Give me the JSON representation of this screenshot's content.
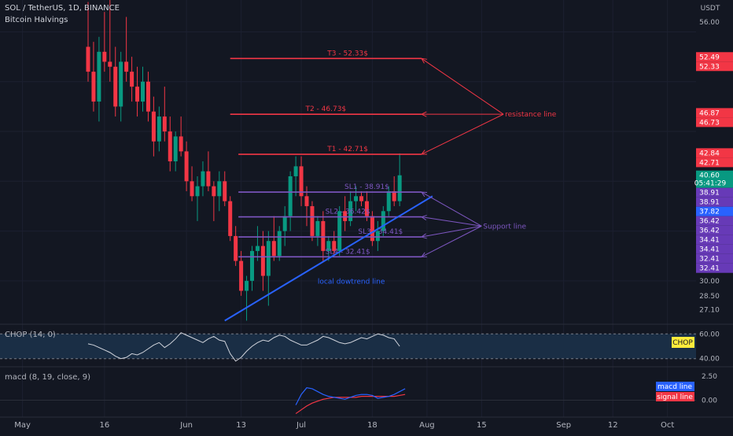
{
  "header": {
    "symbol": "SOL / TetherUS, 1D, BINANCE",
    "indicator": "Bitcoin Halvings",
    "currency": "USDT"
  },
  "chart_data": {
    "type": "candlestick",
    "ylim": [
      25.8,
      58.2
    ],
    "right_ticks": [
      "56.00",
      "30.00",
      "28.50",
      "27.10"
    ],
    "level_tags": [
      {
        "value": 52.49,
        "text": "52.49",
        "color": "#f23645"
      },
      {
        "value": 52.33,
        "text": "52.33",
        "color": "#f23645"
      },
      {
        "value": 46.87,
        "text": "46.87",
        "color": "#f23645"
      },
      {
        "value": 46.73,
        "text": "46.73",
        "color": "#f23645"
      },
      {
        "value": 42.84,
        "text": "42.84",
        "color": "#f23645"
      },
      {
        "value": 42.71,
        "text": "42.71",
        "color": "#f23645"
      },
      {
        "value": 40.6,
        "text": "40.60",
        "sub": "05:41:29",
        "color": "#089981"
      },
      {
        "value": 38.91,
        "text": "38.91",
        "color": "#673ab7"
      },
      {
        "value": 38.91,
        "text": "38.91",
        "color": "#673ab7"
      },
      {
        "value": 37.82,
        "text": "37.82",
        "color": "#2962ff"
      },
      {
        "value": 36.42,
        "text": "36.42",
        "color": "#673ab7"
      },
      {
        "value": 36.42,
        "text": "36.42",
        "color": "#673ab7"
      },
      {
        "value": 34.41,
        "text": "34.41",
        "color": "#673ab7"
      },
      {
        "value": 34.41,
        "text": "34.41",
        "color": "#673ab7"
      },
      {
        "value": 32.41,
        "text": "32.41",
        "color": "#673ab7"
      },
      {
        "value": 32.41,
        "text": "32.41",
        "color": "#673ab7"
      }
    ],
    "x_labels": [
      {
        "i": -12,
        "text": "May"
      },
      {
        "i": 3,
        "text": "16"
      },
      {
        "i": 18,
        "text": "Jun"
      },
      {
        "i": 28,
        "text": "13"
      },
      {
        "i": 39,
        "text": "Jul"
      },
      {
        "i": 52,
        "text": "18"
      },
      {
        "i": 62,
        "text": "Aug"
      },
      {
        "i": 72,
        "text": "15"
      },
      {
        "i": 87,
        "text": "Sep"
      },
      {
        "i": 96,
        "text": "12"
      },
      {
        "i": 106,
        "text": "Oct"
      }
    ],
    "candles": [
      [
        53.5,
        58.0,
        50.0,
        51.0
      ],
      [
        51.0,
        54.0,
        47.0,
        48.0
      ],
      [
        48.0,
        54.5,
        46.0,
        53.0
      ],
      [
        53.0,
        57.0,
        51.0,
        52.0
      ],
      [
        52.0,
        58.2,
        50.0,
        51.5
      ],
      [
        51.5,
        53.5,
        46.5,
        47.5
      ],
      [
        47.5,
        53.0,
        46.0,
        52.0
      ],
      [
        52.0,
        56.5,
        50.0,
        51.0
      ],
      [
        51.0,
        52.5,
        48.0,
        49.5
      ],
      [
        49.5,
        51.5,
        46.5,
        48.0
      ],
      [
        48.0,
        51.5,
        47.0,
        50.0
      ],
      [
        50.0,
        51.0,
        46.0,
        47.0
      ],
      [
        47.0,
        48.5,
        42.5,
        44.0
      ],
      [
        44.0,
        47.5,
        43.0,
        46.5
      ],
      [
        46.5,
        49.5,
        44.0,
        45.0
      ],
      [
        45.0,
        46.5,
        41.0,
        42.0
      ],
      [
        42.0,
        45.0,
        41.0,
        44.5
      ],
      [
        44.5,
        46.5,
        42.5,
        43.0
      ],
      [
        43.0,
        44.0,
        39.0,
        40.0
      ],
      [
        40.0,
        41.5,
        38.0,
        38.5
      ],
      [
        38.5,
        40.5,
        36.0,
        39.5
      ],
      [
        39.5,
        42.0,
        38.5,
        41.0
      ],
      [
        41.0,
        43.0,
        39.0,
        39.5
      ],
      [
        39.5,
        40.0,
        36.0,
        38.5
      ],
      [
        38.5,
        41.0,
        37.0,
        40.0
      ],
      [
        40.0,
        41.0,
        37.5,
        38.0
      ],
      [
        38.0,
        38.5,
        34.0,
        34.5
      ],
      [
        34.5,
        35.5,
        31.5,
        32.0
      ],
      [
        32.0,
        33.0,
        28.5,
        29.0
      ],
      [
        29.0,
        30.5,
        26.0,
        30.0
      ],
      [
        30.0,
        33.5,
        29.0,
        33.0
      ],
      [
        33.0,
        35.5,
        32.0,
        33.5
      ],
      [
        33.5,
        35.0,
        29.0,
        30.5
      ],
      [
        30.5,
        35.0,
        27.5,
        34.0
      ],
      [
        34.0,
        36.5,
        32.0,
        32.5
      ],
      [
        32.5,
        35.5,
        32.0,
        35.0
      ],
      [
        35.0,
        37.5,
        33.5,
        36.5
      ],
      [
        36.5,
        41.0,
        35.0,
        40.5
      ],
      [
        40.5,
        42.5,
        38.5,
        41.5
      ],
      [
        41.5,
        42.5,
        37.5,
        38.5
      ],
      [
        38.5,
        39.5,
        35.5,
        37.5
      ],
      [
        37.5,
        38.0,
        34.0,
        34.5
      ],
      [
        34.5,
        36.5,
        33.5,
        36.0
      ],
      [
        36.0,
        37.0,
        32.0,
        33.0
      ],
      [
        33.0,
        34.5,
        32.0,
        34.0
      ],
      [
        34.0,
        35.0,
        32.5,
        33.0
      ],
      [
        33.0,
        37.5,
        32.5,
        37.0
      ],
      [
        37.0,
        38.5,
        35.0,
        36.0
      ],
      [
        36.0,
        39.0,
        35.5,
        38.0
      ],
      [
        38.0,
        39.5,
        37.0,
        38.5
      ],
      [
        38.5,
        39.0,
        37.5,
        38.0
      ],
      [
        38.0,
        39.0,
        36.0,
        36.5
      ],
      [
        36.5,
        37.0,
        33.5,
        34.0
      ],
      [
        34.0,
        36.0,
        33.0,
        35.0
      ],
      [
        35.0,
        37.5,
        34.5,
        37.0
      ],
      [
        37.0,
        39.5,
        36.5,
        39.0
      ],
      [
        39.0,
        40.5,
        37.5,
        38.0
      ],
      [
        38.0,
        42.8,
        37.5,
        40.6
      ]
    ],
    "level_lines": [
      {
        "name": "T3 - 52.33$",
        "value": 52.33,
        "i0": 26,
        "i1": 61,
        "color": "#f23645",
        "label_i": 47.5
      },
      {
        "name": "T2 - 46.73$",
        "value": 46.73,
        "i0": 26,
        "i1": 61,
        "color": "#f23645",
        "label_i": 43.5
      },
      {
        "name": "T1 - 42.71$",
        "value": 42.71,
        "i0": 27.5,
        "i1": 61,
        "color": "#f23645",
        "label_i": 47.5
      },
      {
        "name": "SL1 - 38.91$",
        "value": 38.91,
        "i0": 27.5,
        "i1": 61,
        "color": "#7e57c2",
        "label_i": 51
      },
      {
        "name": "SL2 - 36.42$",
        "value": 36.42,
        "i0": 27.5,
        "i1": 61,
        "color": "#7e57c2",
        "label_i": 47.5
      },
      {
        "name": "SL3 - 34.41$",
        "value": 34.41,
        "i0": 27.5,
        "i1": 61,
        "color": "#7e57c2",
        "label_i": 53.5
      },
      {
        "name": "SL4 - 32.41$",
        "value": 32.41,
        "i0": 27.5,
        "i1": 61,
        "color": "#7e57c2",
        "label_i": 47.5
      }
    ],
    "trendline": {
      "name": "local dowtrend line",
      "i0": 25,
      "v0": 26.0,
      "i1": 63,
      "v1": 38.5,
      "color": "#2962ff",
      "label_i": 42
    },
    "callouts": [
      {
        "text": "resistance line",
        "i": 78,
        "v": 46.73,
        "color": "#f23645",
        "targets": [
          {
            "i": 61,
            "v": 52.33
          },
          {
            "i": 61,
            "v": 46.73
          },
          {
            "i": 61,
            "v": 42.71
          }
        ]
      },
      {
        "text": "Support line",
        "i": 74,
        "v": 35.5,
        "color": "#7e57c2",
        "targets": [
          {
            "i": 61,
            "v": 38.91
          },
          {
            "i": 61,
            "v": 36.42
          },
          {
            "i": 61,
            "v": 34.41
          },
          {
            "i": 61,
            "v": 32.41
          }
        ]
      }
    ],
    "chop": {
      "name": "CHOP (14, 0)",
      "tag": "CHOP",
      "ticks": [
        "60.00",
        "40.00"
      ],
      "band": [
        40,
        60
      ],
      "ylim": [
        36,
        64
      ],
      "values": [
        52,
        51,
        49,
        47,
        45,
        42,
        40,
        41,
        44,
        43,
        45,
        48,
        51,
        53,
        49,
        52,
        56,
        61,
        59,
        57,
        55,
        53,
        56,
        58,
        55,
        54,
        44,
        38,
        41,
        46,
        50,
        53,
        55,
        54,
        57,
        59,
        58,
        55,
        53,
        51,
        51,
        53,
        55,
        58,
        57,
        55,
        53,
        52,
        53,
        55,
        57,
        56,
        58,
        60,
        59,
        57,
        56,
        50
      ]
    },
    "macd": {
      "name": "macd (8, 19, close, 9)",
      "ticks": [
        "2.50",
        "0.00"
      ],
      "ylim": [
        -1.6,
        3.0
      ],
      "start": 38,
      "macd_line": [
        -0.5,
        0.6,
        1.3,
        1.2,
        0.9,
        0.6,
        0.4,
        0.3,
        0.2,
        0.1,
        0.3,
        0.5,
        0.6,
        0.6,
        0.5,
        0.2,
        0.3,
        0.4,
        0.6,
        0.9,
        1.2
      ],
      "signal_line": [
        -1.4,
        -1.0,
        -0.6,
        -0.3,
        -0.1,
        0.1,
        0.2,
        0.3,
        0.3,
        0.3,
        0.3,
        0.3,
        0.4,
        0.4,
        0.4,
        0.4,
        0.4,
        0.4,
        0.4,
        0.5,
        0.6
      ],
      "legend": [
        {
          "text": "macd line",
          "color": "#2962ff"
        },
        {
          "text": "signal line",
          "color": "#f23645"
        }
      ]
    }
  }
}
